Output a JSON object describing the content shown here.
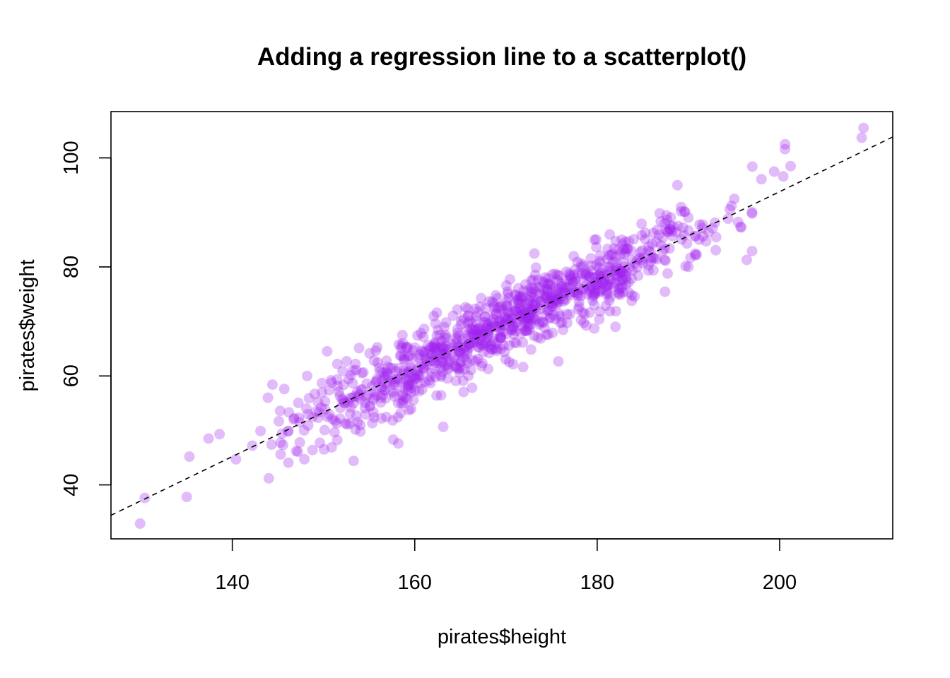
{
  "chart_data": {
    "type": "scatter",
    "title": "Adding a regression line to a scatterplot()",
    "xlabel": "pirates$height",
    "ylabel": "pirates$weight",
    "xlim": [
      126.7,
      212.4
    ],
    "ylim": [
      30.1,
      108.5
    ],
    "xticks": [
      140,
      160,
      180,
      200
    ],
    "yticks": [
      40,
      60,
      80,
      100
    ],
    "grid": false,
    "legend": "none",
    "point_color": "#A020F0",
    "point_alpha": 0.3,
    "regression_line": {
      "style": "dashed",
      "color": "#000000",
      "slope": 0.81,
      "intercept": -68.2
    },
    "points": {
      "x": [
        129.9,
        130.4,
        135.0,
        135.3,
        137.4,
        138.6,
        140.4,
        142.2,
        143.1,
        143.9,
        144.0,
        144.3,
        144.4,
        145.3,
        145.7,
        146.2,
        147.0,
        147.4,
        147.9,
        148.2,
        148.8,
        149.4,
        150.4,
        150.9,
        151.5,
        151.8,
        152.1,
        152.6,
        153.1,
        153.3,
        153.6,
        153.9,
        154.1,
        158.2,
        182.0,
        188.8,
        190.0,
        196.4,
        197.0,
        198.0,
        199.4,
        200.4,
        200.6,
        200.6,
        201.2,
        209.0,
        209.2
      ],
      "y": [
        32.9,
        37.6,
        37.8,
        45.2,
        48.5,
        49.3,
        44.7,
        47.2,
        49.9,
        56.0,
        41.2,
        47.4,
        58.4,
        45.6,
        57.6,
        53.3,
        46.2,
        47.8,
        44.7,
        60.0,
        46.4,
        55.2,
        64.5,
        46.9,
        62.2,
        56.3,
        60.9,
        51.1,
        56.0,
        44.4,
        52.7,
        65.1,
        57.4,
        47.6,
        69.0,
        95.0,
        80.0,
        81.3,
        98.4,
        96.1,
        97.5,
        96.6,
        101.6,
        102.5,
        98.5,
        103.7,
        105.5
      ]
    },
    "cloud": {
      "n": 950,
      "x_mean": 170,
      "x_sd": 12,
      "x_range": [
        145,
        197
      ],
      "residual_sd": 3.3
    }
  }
}
